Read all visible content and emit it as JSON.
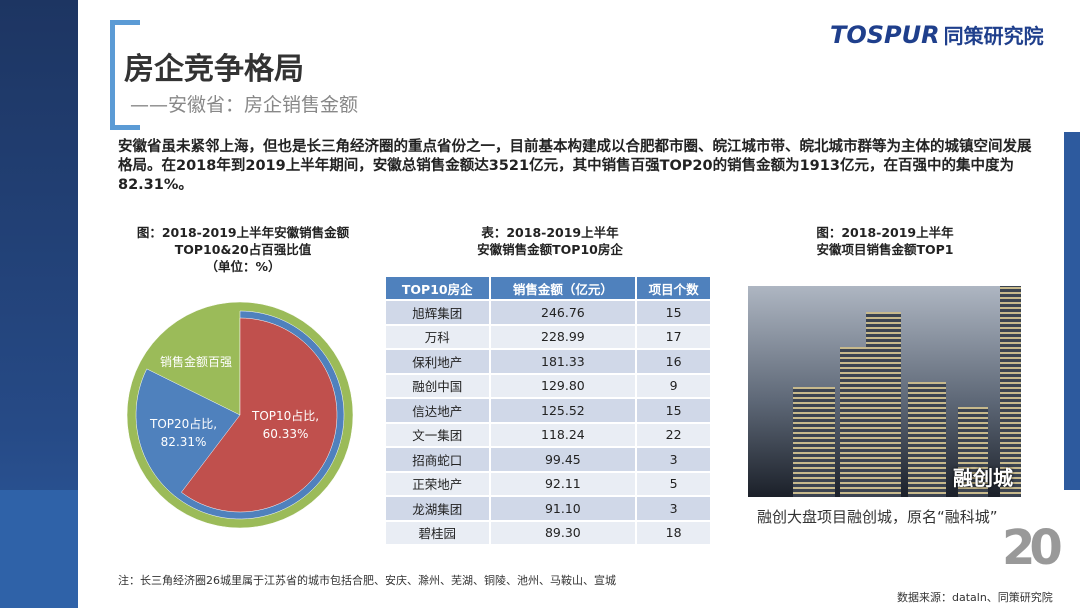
{
  "header": {
    "title": "房企竞争格局",
    "subtitle": "——安徽省：房企销售金额",
    "logo_en": "TOSPUR",
    "logo_cn": "同策研究院"
  },
  "intro": "安徽省虽未紧邻上海，但也是长三角经济圈的重点省份之一，目前基本构建成以合肥都市圈、皖江城市带、皖北城市群等为主体的城镇空间发展格局。在2018年到2019上半年期间，安徽总销售金额达3521亿元，其中销售百强TOP20的销售金额为1913亿元，在百强中的集中度为82.31%。",
  "chart_caption": [
    "图：2018-2019上半年安徽销售金额",
    "TOP10&20占百强比值",
    "（单位：%）"
  ],
  "chart_data": {
    "type": "pie",
    "title": "",
    "unit": "%",
    "series": [
      {
        "name": "销售金额百强",
        "label": "销售金额百强",
        "value": 100,
        "color": "#9bbb59"
      },
      {
        "name": "TOP20占比",
        "label": "TOP20占比,",
        "value_label": "82.31%",
        "value": 82.31,
        "color": "#4f81bd"
      },
      {
        "name": "TOP10占比",
        "label": "TOP10占比,",
        "value_label": "60.33%",
        "value": 60.33,
        "color": "#c0504d"
      }
    ]
  },
  "table_caption": [
    "表：2018-2019上半年",
    "安徽销售金额TOP10房企"
  ],
  "table": {
    "headers": [
      "TOP10房企",
      "销售金额（亿元）",
      "项目个数"
    ],
    "rows": [
      [
        "旭辉集团",
        "246.76",
        "15"
      ],
      [
        "万科",
        "228.99",
        "17"
      ],
      [
        "保利地产",
        "181.33",
        "16"
      ],
      [
        "融创中国",
        "129.80",
        "9"
      ],
      [
        "信达地产",
        "125.52",
        "15"
      ],
      [
        "文一集团",
        "118.24",
        "22"
      ],
      [
        "招商蛇口",
        "99.45",
        "3"
      ],
      [
        "正荣地产",
        "92.11",
        "5"
      ],
      [
        "龙湖集团",
        "91.10",
        "3"
      ],
      [
        "碧桂园",
        "89.30",
        "18"
      ]
    ]
  },
  "photo_caption_title": [
    "图：2018-2019上半年",
    "安徽项目销售金额TOP1"
  ],
  "photo_overlay": "融创城",
  "photo_caption": "融创大盘项目融创城，原名“融科城”",
  "note": "注：长三角经济圈26城里属于江苏省的城市包括合肥、安庆、滁州、芜湖、铜陵、池州、马鞍山、宣城",
  "source": "数据来源：dataln、同策研究院",
  "anniversary": "20"
}
